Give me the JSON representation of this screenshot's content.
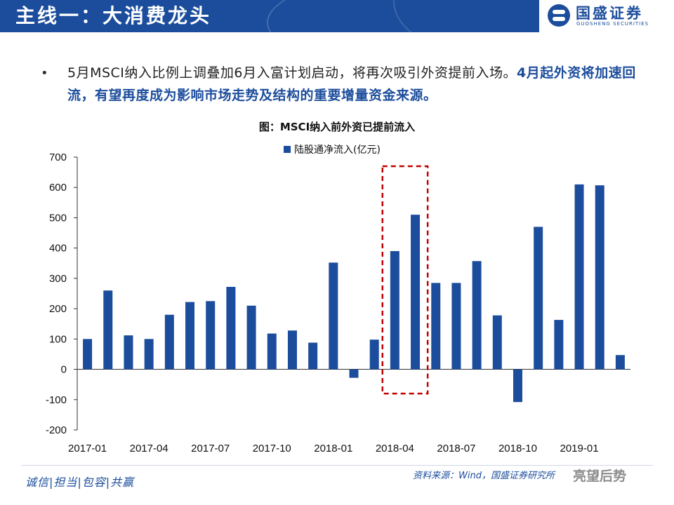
{
  "header": {
    "title": "主线一：大消费龙头"
  },
  "logo": {
    "name_cn": "国盛证券",
    "name_en": "GUOSHENG SECURITIES"
  },
  "bullet": {
    "dot": "•",
    "text": "5月MSCI纳入比例上调叠加6月入富计划启动，将再次吸引外资提前入场。",
    "highlight": "4月起外资将加速回流，有望再度成为影响市场走势及结构的重要增量资金来源。"
  },
  "chart_data": {
    "type": "bar",
    "title": "图：MSCI纳入前外资已提前流入",
    "series": [
      {
        "name": "陆股通净流入(亿元)",
        "color": "#1c4d9c",
        "values": [
          100,
          260,
          112,
          100,
          180,
          222,
          225,
          272,
          210,
          118,
          128,
          88,
          352,
          -28,
          98,
          390,
          510,
          285,
          285,
          357,
          178,
          -108,
          470,
          163,
          610,
          607,
          47
        ]
      }
    ],
    "categories": [
      "2017-01",
      "2017-02",
      "2017-03",
      "2017-04",
      "2017-05",
      "2017-06",
      "2017-07",
      "2017-08",
      "2017-09",
      "2017-10",
      "2017-11",
      "2017-12",
      "2018-01",
      "2018-02",
      "2018-03",
      "2018-04",
      "2018-05",
      "2018-06",
      "2018-07",
      "2018-08",
      "2018-09",
      "2018-10",
      "2018-11",
      "2018-12",
      "2019-01",
      "2019-02",
      "2019-03"
    ],
    "xtick_labels": [
      "2017-01",
      "2017-04",
      "2017-07",
      "2017-10",
      "2018-01",
      "2018-04",
      "2018-07",
      "2018-10",
      "2019-01"
    ],
    "ytick_labels": [
      "-200",
      "-100",
      "0",
      "100",
      "200",
      "300",
      "400",
      "500",
      "600",
      "700"
    ],
    "ylim": [
      -200,
      700
    ],
    "grid": false,
    "legend_position": "top",
    "highlight_range": [
      "2018-04",
      "2018-05"
    ],
    "highlight_color": "#c00000"
  },
  "footer": {
    "slogan": "诚信|担当|包容|共赢",
    "source": "资料来源：Wind，国盛证券研究所",
    "watermark": "亮望后势"
  }
}
